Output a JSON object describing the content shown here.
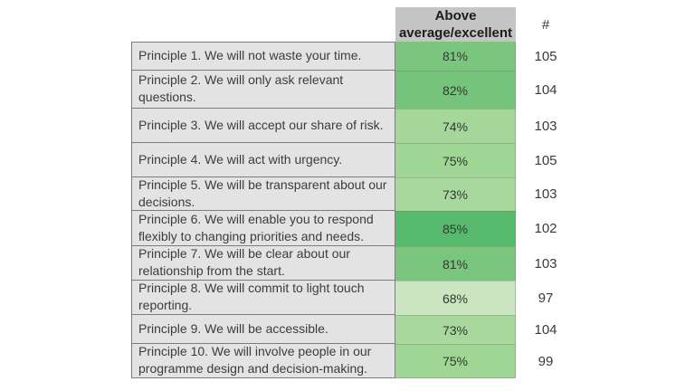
{
  "chart_data": {
    "type": "table",
    "title": "",
    "columns": [
      "",
      "Above average/excellent",
      "#"
    ],
    "rows": [
      {
        "label": "Principle 1. We will not waste your time.",
        "percent": "81%",
        "percent_value": 81,
        "count": "105",
        "count_value": 105,
        "color": "#7AC67F"
      },
      {
        "label": "Principle 2. We will only ask relevant questions.",
        "percent": "82%",
        "percent_value": 82,
        "count": "104",
        "count_value": 104,
        "color": "#75C47C"
      },
      {
        "label": "Principle 3. We will accept our share of risk.",
        "percent": "74%",
        "percent_value": 74,
        "count": "103",
        "count_value": 103,
        "color": "#A5D79A"
      },
      {
        "label": "Principle 4. We will act with urgency.",
        "percent": "75%",
        "percent_value": 75,
        "count": "105",
        "count_value": 105,
        "color": "#9FD595"
      },
      {
        "label": "Principle 5. We will be transparent about our decisions.",
        "percent": "73%",
        "percent_value": 73,
        "count": "103",
        "count_value": 103,
        "color": "#A9D89E"
      },
      {
        "label": "Principle 6. We will enable you to respond flexibly to changing priorities and needs.",
        "percent": "85%",
        "percent_value": 85,
        "count": "102",
        "count_value": 102,
        "color": "#58BA6E"
      },
      {
        "label": "Principle 7. We will be clear about our relationship from the start.",
        "percent": "81%",
        "percent_value": 81,
        "count": "103",
        "count_value": 103,
        "color": "#7AC67F"
      },
      {
        "label": "Principle 8. We will commit to light touch reporting.",
        "percent": "68%",
        "percent_value": 68,
        "count": "97",
        "count_value": 97,
        "color": "#CBE5C0"
      },
      {
        "label": "Principle 9. We will be accessible.",
        "percent": "73%",
        "percent_value": 73,
        "count": "104",
        "count_value": 104,
        "color": "#A9D89E"
      },
      {
        "label": "Principle 10. We will involve people in our programme design and decision-making.",
        "percent": "75%",
        "percent_value": 75,
        "count": "99",
        "count_value": 99,
        "color": "#9FD595"
      }
    ],
    "legend": "none",
    "notes": "Green cell shading is a conditional-formatting color scale: darker green = higher percentage (85% darkest, 68% lightest)",
    "header_bg_color": "#C5C5C5",
    "label_cell_bg_color": "#E3E3E3"
  }
}
